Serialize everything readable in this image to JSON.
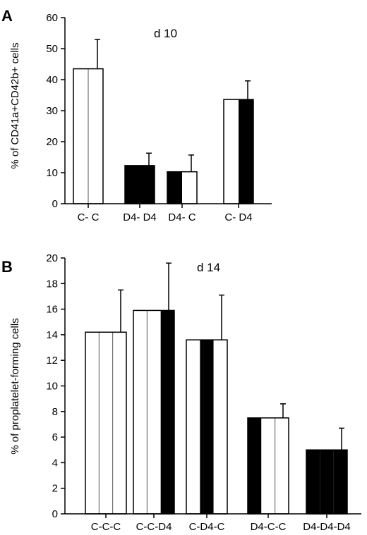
{
  "chart_data": [
    {
      "type": "bar",
      "panel_label": "A",
      "annotation": "d 10",
      "ylabel": "% of CD41a+CD42b+ cells",
      "xlabel": "",
      "ylim": [
        0,
        60
      ],
      "yticks": [
        "0",
        "10",
        "20",
        "30",
        "40",
        "50",
        "60"
      ],
      "grid": false,
      "categories": [
        "C- C",
        "D4- D4",
        "D4- C",
        "C- D4"
      ],
      "values": [
        43.5,
        12.3,
        10.3,
        33.6
      ],
      "errors": [
        9.5,
        4.0,
        5.4,
        6.0
      ],
      "fill_pattern": [
        [
          "white",
          "white"
        ],
        [
          "black",
          "black"
        ],
        [
          "black",
          "white"
        ],
        [
          "white",
          "black"
        ]
      ]
    },
    {
      "type": "bar",
      "panel_label": "B",
      "annotation": "d 14",
      "ylabel": "% of proplatelet-forming cells",
      "xlabel": "",
      "ylim": [
        0,
        20
      ],
      "yticks": [
        "0",
        "2",
        "4",
        "6",
        "8",
        "10",
        "12",
        "14",
        "16",
        "18",
        "20"
      ],
      "grid": false,
      "categories": [
        "C-C-C",
        "C-C-D4",
        "C-D4-C",
        "D4-C-C",
        "D4-D4-D4"
      ],
      "values": [
        14.2,
        15.9,
        13.6,
        7.5,
        5.0
      ],
      "errors": [
        3.3,
        3.7,
        3.5,
        1.1,
        1.7
      ],
      "fill_pattern": [
        [
          "white",
          "white",
          "white"
        ],
        [
          "white",
          "white",
          "black"
        ],
        [
          "white",
          "black",
          "white"
        ],
        [
          "black",
          "white",
          "white"
        ],
        [
          "black",
          "black",
          "black"
        ]
      ]
    }
  ],
  "colors": {
    "black": "#000000",
    "white": "#ffffff"
  }
}
